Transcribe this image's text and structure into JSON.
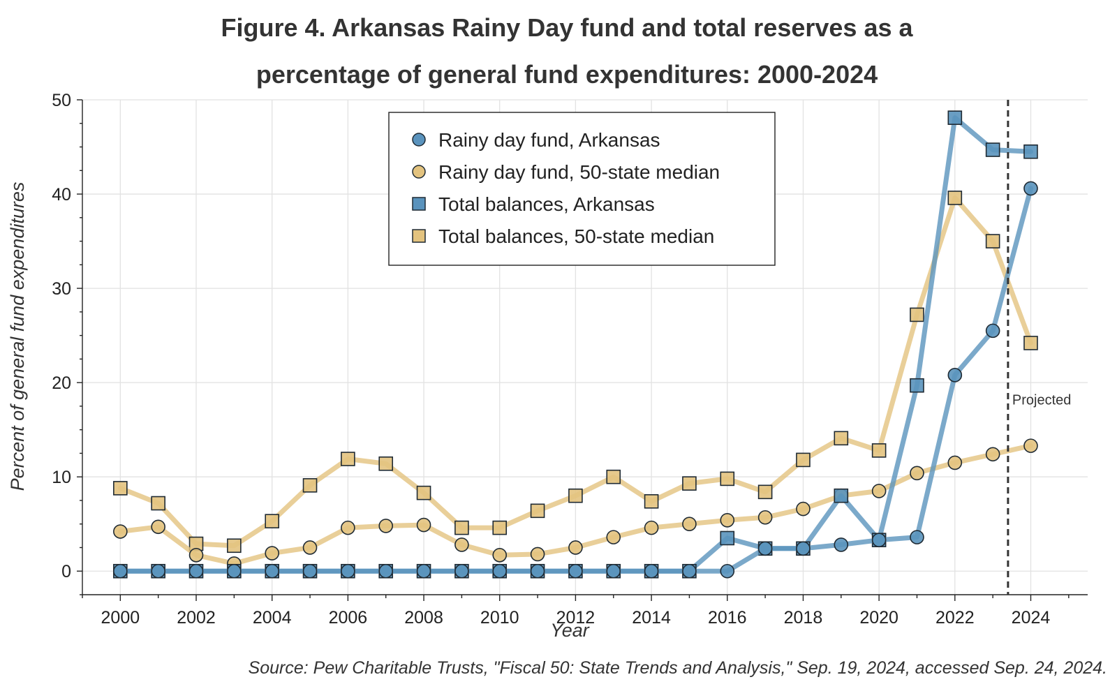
{
  "chart_data": {
    "type": "line",
    "title_lines": [
      "Figure 4. Arkansas Rainy Day fund and total reserves as a",
      "percentage of general fund expenditures: 2000-2024"
    ],
    "xlabel": "Year",
    "ylabel": "Percent of general fund expenditures",
    "xlim": [
      1999,
      2025.5
    ],
    "ylim": [
      -2.5,
      50
    ],
    "x_ticks": [
      2000,
      2002,
      2004,
      2006,
      2008,
      2010,
      2012,
      2014,
      2016,
      2018,
      2020,
      2022,
      2024
    ],
    "x_tick_labels": [
      "2000",
      "2002",
      "2004",
      "2006",
      "2008",
      "2010",
      "2012",
      "2014",
      "2016",
      "2018",
      "2020",
      "2022",
      "2024"
    ],
    "y_ticks": [
      0,
      10,
      20,
      30,
      40,
      50
    ],
    "y_tick_labels": [
      "0",
      "10",
      "20",
      "30",
      "40",
      "50"
    ],
    "grid": true,
    "legend_position": "top-center",
    "x": [
      2000,
      2001,
      2002,
      2003,
      2004,
      2005,
      2006,
      2007,
      2008,
      2009,
      2010,
      2011,
      2012,
      2013,
      2014,
      2015,
      2016,
      2017,
      2018,
      2019,
      2020,
      2021,
      2022,
      2023,
      2024
    ],
    "series": [
      {
        "name": "Total balances, 50-state median",
        "marker": "square",
        "color": "#e3c37f",
        "values": [
          8.8,
          7.2,
          2.9,
          2.7,
          5.3,
          9.1,
          11.9,
          11.4,
          8.3,
          4.6,
          4.6,
          6.4,
          8.0,
          10.0,
          7.4,
          9.3,
          9.8,
          8.4,
          11.8,
          14.1,
          12.8,
          27.2,
          39.6,
          35.0,
          24.2
        ]
      },
      {
        "name": "Rainy day fund, 50-state median",
        "marker": "circle",
        "color": "#e3c37f",
        "values": [
          4.2,
          4.7,
          1.7,
          0.8,
          1.9,
          2.5,
          4.6,
          4.8,
          4.9,
          2.8,
          1.7,
          1.8,
          2.5,
          3.6,
          4.6,
          5.0,
          5.4,
          5.7,
          6.6,
          8.0,
          8.5,
          10.4,
          11.5,
          12.4,
          13.3
        ]
      },
      {
        "name": "Total balances, Arkansas",
        "marker": "square",
        "color": "#5a93bd",
        "values": [
          0,
          0,
          0,
          0,
          0,
          0,
          0,
          0,
          0,
          0,
          0,
          0,
          0,
          0,
          0,
          0,
          3.5,
          2.4,
          2.4,
          8.0,
          3.3,
          19.7,
          48.1,
          44.7,
          44.5
        ]
      },
      {
        "name": "Rainy day fund, Arkansas",
        "marker": "circle",
        "color": "#5a93bd",
        "values": [
          0,
          0,
          0,
          0,
          0,
          0,
          0,
          0,
          0,
          0,
          0,
          0,
          0,
          0,
          0,
          0,
          0,
          2.4,
          2.4,
          2.8,
          3.3,
          3.6,
          20.8,
          25.5,
          40.6
        ]
      }
    ],
    "legend_entries": [
      {
        "label": "Rainy day fund, Arkansas",
        "marker": "circle",
        "color": "#5a93bd"
      },
      {
        "label": "Rainy day fund, 50-state median",
        "marker": "circle",
        "color": "#e3c37f"
      },
      {
        "label": "Total balances, Arkansas",
        "marker": "square",
        "color": "#5a93bd"
      },
      {
        "label": "Total balances, 50-state median",
        "marker": "square",
        "color": "#e3c37f"
      }
    ],
    "annotation": {
      "x": 2023.4,
      "label": "Projected",
      "y_label": 18.2
    },
    "source": "Source: Pew Charitable Trusts, \"Fiscal 50: State Trends and Analysis,\" Sep. 19, 2024, accessed Sep. 24, 2024."
  }
}
